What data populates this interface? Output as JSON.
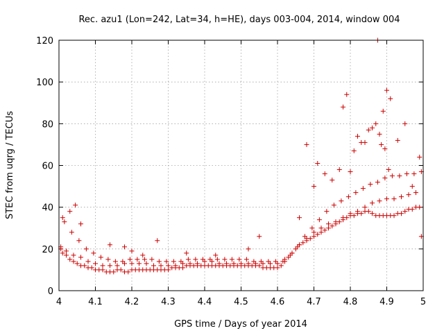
{
  "chart_data": {
    "type": "scatter",
    "title": "Rec. azu1 (Lon=242, Lat=34, h=HE), days 003-004, 2014, window 004",
    "xlabel": "GPS time / Days of year 2014",
    "ylabel": "STEC from uqrg / TECUs",
    "xlim": [
      4,
      5
    ],
    "ylim": [
      0,
      120
    ],
    "xticks": [
      4,
      4.1,
      4.2,
      4.3,
      4.4,
      4.5,
      4.6,
      4.7,
      4.8,
      4.9,
      5
    ],
    "xtick_labels": [
      "4",
      "4.1",
      "4.2",
      "4.3",
      "4.4",
      "4.5",
      "4.6",
      "4.7",
      "4.8",
      "4.9",
      "5"
    ],
    "yticks": [
      0,
      20,
      40,
      60,
      80,
      100,
      120
    ],
    "ytick_labels": [
      "0",
      "20",
      "40",
      "60",
      "80",
      "100",
      "120"
    ],
    "grid": true,
    "marker": "+",
    "color": "#cc0000",
    "series": [
      {
        "name": "STEC",
        "x": [
          4.005,
          4.01,
          4.02,
          4.03,
          4.04,
          4.05,
          4.06,
          4.07,
          4.08,
          4.09,
          4.1,
          4.11,
          4.12,
          4.13,
          4.14,
          4.15,
          4.16,
          4.17,
          4.18,
          4.19,
          4.2,
          4.21,
          4.22,
          4.23,
          4.24,
          4.25,
          4.26,
          4.27,
          4.28,
          4.29,
          4.3,
          4.31,
          4.32,
          4.33,
          4.34,
          4.35,
          4.36,
          4.37,
          4.38,
          4.39,
          4.4,
          4.41,
          4.42,
          4.43,
          4.44,
          4.45,
          4.46,
          4.47,
          4.48,
          4.49,
          4.5,
          4.51,
          4.52,
          4.53,
          4.54,
          4.55,
          4.56,
          4.57,
          4.58,
          4.59,
          4.6,
          4.61,
          4.62,
          4.63,
          4.64,
          4.65,
          4.66,
          4.67,
          4.68,
          4.69,
          4.7,
          4.71,
          4.72,
          4.73,
          4.74,
          4.75,
          4.76,
          4.77,
          4.78,
          4.79,
          4.8,
          4.81,
          4.82,
          4.83,
          4.84,
          4.85,
          4.86,
          4.87,
          4.88,
          4.89,
          4.9,
          4.91,
          4.92,
          4.93,
          4.94,
          4.95,
          4.96,
          4.97,
          4.98,
          4.99,
          4.005,
          4.02,
          4.04,
          4.06,
          4.08,
          4.1,
          4.12,
          4.14,
          4.16,
          4.18,
          4.2,
          4.22,
          4.24,
          4.26,
          4.28,
          4.3,
          4.32,
          4.34,
          4.36,
          4.38,
          4.4,
          4.42,
          4.44,
          4.46,
          4.48,
          4.5,
          4.52,
          4.54,
          4.56,
          4.58,
          4.6,
          4.62,
          4.64,
          4.66,
          4.68,
          4.7,
          4.72,
          4.74,
          4.76,
          4.78,
          4.8,
          4.82,
          4.84,
          4.86,
          4.88,
          4.9,
          4.92,
          4.94,
          4.96,
          4.98,
          4.015,
          4.035,
          4.055,
          4.075,
          4.095,
          4.115,
          4.135,
          4.155,
          4.175,
          4.195,
          4.215,
          4.235,
          4.255,
          4.275,
          4.295,
          4.315,
          4.335,
          4.355,
          4.375,
          4.395,
          4.415,
          4.435,
          4.455,
          4.475,
          4.495,
          4.515,
          4.535,
          4.555,
          4.575,
          4.595,
          4.615,
          4.635,
          4.655,
          4.675,
          4.695,
          4.715,
          4.735,
          4.755,
          4.775,
          4.795,
          4.815,
          4.835,
          4.855,
          4.875,
          4.895,
          4.915,
          4.935,
          4.955,
          4.975,
          4.995,
          4.01,
          4.03,
          4.045,
          4.06,
          4.14,
          4.18,
          4.2,
          4.23,
          4.27,
          4.35,
          4.43,
          4.52,
          4.55,
          4.66,
          4.68,
          4.7,
          4.71,
          4.73,
          4.75,
          4.77,
          4.78,
          4.79,
          4.8,
          4.81,
          4.82,
          4.83,
          4.84,
          4.85,
          4.86,
          4.87,
          4.875,
          4.88,
          4.885,
          4.89,
          4.895,
          4.9,
          4.905,
          4.91,
          4.93,
          4.95,
          4.97,
          4.99,
          4.995
        ],
        "y": [
          20,
          18,
          17,
          15,
          14,
          13,
          12,
          12,
          11,
          11,
          10,
          10,
          10,
          9,
          9,
          9,
          10,
          10,
          9,
          9,
          10,
          10,
          10,
          10,
          10,
          10,
          10,
          10,
          10,
          10,
          10,
          11,
          11,
          11,
          11,
          12,
          12,
          12,
          12,
          12,
          12,
          12,
          12,
          12,
          12,
          12,
          12,
          12,
          12,
          12,
          12,
          12,
          12,
          12,
          12,
          12,
          11,
          11,
          11,
          11,
          11,
          12,
          14,
          16,
          18,
          20,
          22,
          23,
          24,
          25,
          26,
          27,
          28,
          29,
          30,
          31,
          32,
          33,
          34,
          35,
          36,
          36,
          37,
          37,
          38,
          38,
          37,
          36,
          36,
          36,
          36,
          36,
          36,
          37,
          37,
          38,
          39,
          39,
          40,
          40,
          21,
          19,
          17,
          16,
          14,
          13,
          12,
          12,
          12,
          13,
          13,
          13,
          13,
          12,
          12,
          12,
          12,
          13,
          13,
          13,
          14,
          14,
          13,
          13,
          13,
          13,
          13,
          13,
          13,
          13,
          13,
          15,
          18,
          22,
          25,
          28,
          30,
          32,
          33,
          35,
          37,
          38,
          40,
          42,
          43,
          44,
          44,
          45,
          46,
          47,
          33,
          28,
          24,
          20,
          18,
          16,
          15,
          14,
          14,
          15,
          15,
          15,
          15,
          14,
          14,
          14,
          14,
          15,
          15,
          15,
          15,
          15,
          15,
          15,
          15,
          15,
          14,
          14,
          14,
          14,
          14,
          17,
          21,
          26,
          30,
          34,
          38,
          41,
          43,
          45,
          47,
          49,
          51,
          52,
          54,
          55,
          55,
          56,
          56,
          57,
          35,
          38,
          41,
          32,
          22,
          21,
          19,
          17,
          24,
          18,
          17,
          20,
          26,
          35,
          70,
          50,
          61,
          56,
          53,
          58,
          88,
          94,
          57,
          67,
          74,
          71,
          71,
          77,
          78,
          80,
          120,
          75,
          70,
          86,
          68,
          96,
          58,
          92,
          72,
          80,
          50,
          64,
          26
        ]
      }
    ]
  }
}
